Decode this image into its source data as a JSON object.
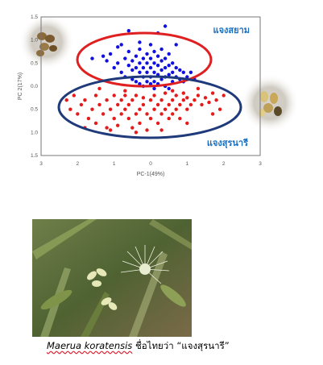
{
  "chart_data": {
    "type": "scatter",
    "xlabel": "PC-1(49%)",
    "ylabel": "PC 2(17%)",
    "xlim": [
      -3,
      3
    ],
    "ylim": [
      -1.5,
      1.5
    ],
    "x_ticks": [
      "3",
      "2",
      "1",
      "0",
      "1",
      "2",
      "3"
    ],
    "y_ticks": [
      "1.5",
      "1.0",
      "0.5",
      "0.0",
      "0.5",
      "1.0",
      "1.5"
    ],
    "grid": false,
    "colors": {
      "siam": "#1010e0",
      "surin": "#e51a1a",
      "siam_ellipse": "#e02020",
      "surin_ellipse": "#1f3a7a",
      "label": "#1a6fc0"
    },
    "series": [
      {
        "name": "แจงสยาม",
        "x": [
          -1.6,
          -1.3,
          -1.2,
          -1.1,
          -1.0,
          -0.9,
          -0.8,
          -0.8,
          -0.7,
          -0.7,
          -0.6,
          -0.6,
          -0.5,
          -0.5,
          -0.5,
          -0.4,
          -0.4,
          -0.4,
          -0.3,
          -0.3,
          -0.3,
          -0.3,
          -0.2,
          -0.2,
          -0.2,
          -0.2,
          -0.1,
          -0.1,
          -0.1,
          -0.1,
          0.0,
          0.0,
          0.0,
          0.0,
          0.0,
          0.1,
          0.1,
          0.1,
          0.1,
          0.2,
          0.2,
          0.2,
          0.2,
          0.3,
          0.3,
          0.3,
          0.3,
          0.4,
          0.4,
          0.4,
          0.4,
          0.5,
          0.5,
          0.5,
          0.6,
          0.6,
          0.6,
          0.7,
          0.7,
          0.8,
          0.8,
          0.9,
          0.9,
          1.0,
          1.1,
          1.2,
          0.4,
          -0.6,
          0.2,
          -0.9,
          0.7,
          -0.3,
          0.1,
          0.5
        ],
        "y": [
          0.6,
          0.65,
          0.55,
          0.7,
          0.4,
          0.5,
          0.9,
          0.3,
          0.6,
          0.2,
          0.45,
          0.75,
          0.35,
          0.55,
          0.15,
          0.65,
          0.4,
          0.1,
          0.8,
          0.5,
          0.3,
          0.05,
          0.6,
          0.4,
          0.2,
          0.0,
          0.7,
          0.5,
          0.3,
          0.1,
          0.9,
          0.6,
          0.4,
          0.2,
          0.05,
          0.75,
          0.5,
          0.3,
          0.1,
          0.65,
          0.45,
          0.25,
          0.05,
          0.8,
          0.55,
          0.35,
          0.15,
          0.6,
          0.4,
          0.2,
          0.0,
          0.7,
          0.45,
          0.25,
          0.5,
          0.3,
          0.1,
          0.4,
          0.2,
          0.35,
          0.15,
          0.3,
          0.1,
          0.2,
          0.3,
          0.15,
          1.3,
          1.2,
          1.15,
          0.85,
          0.9,
          0.95,
          -0.05,
          -0.05
        ]
      },
      {
        "name": "แจงสุรนารี",
        "x": [
          -2.3,
          -2.2,
          -2.1,
          -2.0,
          -1.9,
          -1.8,
          -1.7,
          -1.6,
          -1.5,
          -1.5,
          -1.4,
          -1.3,
          -1.2,
          -1.2,
          -1.1,
          -1.0,
          -1.0,
          -0.9,
          -0.9,
          -0.8,
          -0.8,
          -0.7,
          -0.7,
          -0.6,
          -0.6,
          -0.5,
          -0.5,
          -0.4,
          -0.4,
          -0.3,
          -0.3,
          -0.2,
          -0.2,
          -0.1,
          -0.1,
          0.0,
          0.0,
          0.1,
          0.1,
          0.2,
          0.2,
          0.3,
          0.3,
          0.4,
          0.4,
          0.5,
          0.5,
          0.6,
          0.6,
          0.7,
          0.7,
          0.8,
          0.8,
          0.9,
          0.9,
          1.0,
          1.0,
          1.1,
          1.2,
          1.3,
          1.4,
          1.5,
          1.6,
          1.7,
          1.8,
          1.9,
          2.0,
          -1.8,
          -1.1,
          -0.4,
          0.3,
          1.0,
          1.7,
          -1.4,
          -0.7,
          0.6,
          1.3
        ],
        "y": [
          -0.3,
          -0.5,
          -0.2,
          -0.6,
          -0.4,
          -0.3,
          -0.7,
          -0.5,
          -0.2,
          -0.8,
          -0.4,
          -0.6,
          -0.3,
          -0.9,
          -0.5,
          -0.2,
          -0.7,
          -0.4,
          -0.85,
          -0.3,
          -0.6,
          -0.5,
          -0.2,
          -0.7,
          -0.4,
          -0.9,
          -0.3,
          -0.6,
          -0.2,
          -0.5,
          -0.8,
          -0.4,
          -0.25,
          -0.6,
          -0.95,
          -0.3,
          -0.7,
          -0.5,
          -0.2,
          -0.8,
          -0.4,
          -0.6,
          -0.3,
          -0.5,
          -0.15,
          -0.7,
          -0.4,
          -0.3,
          -0.6,
          -0.2,
          -0.5,
          -0.4,
          -0.7,
          -0.3,
          -0.15,
          -0.5,
          -0.25,
          -0.4,
          -0.3,
          -0.2,
          -0.4,
          -0.25,
          -0.35,
          -0.15,
          -0.3,
          -0.5,
          -0.2,
          -0.9,
          -0.95,
          -1.0,
          -0.95,
          -0.8,
          -0.6,
          -0.05,
          -0.1,
          -0.1,
          -0.05
        ]
      }
    ],
    "annotations": [
      "แจงสยาม",
      "แจงสุรนารี"
    ]
  },
  "caption": {
    "scientific_name": "Maerua koratensis",
    "thai_text": " ชื่อไทยว่า “แจงสุรนารี”"
  }
}
